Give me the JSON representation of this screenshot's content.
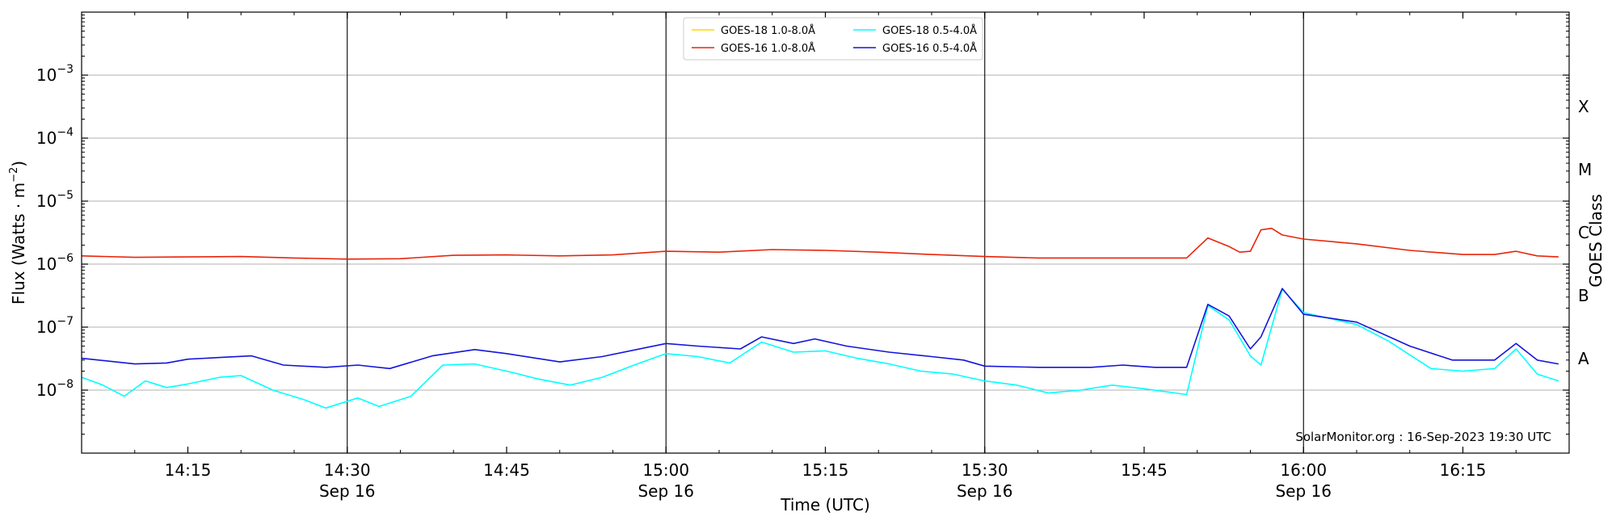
{
  "chart_data": {
    "type": "line",
    "xlabel": "Time (UTC)",
    "ylabel": "Flux (Watts · m",
    "ylabel_sup": "−2",
    "ylabel_close": ")",
    "right_label": "GOES Class",
    "credit": "SolarMonitor.org : 16-Sep-2023 19:30 UTC",
    "log_y": true,
    "grid": "horizontal",
    "legend_position": "top-center",
    "x_range": [
      "14:05",
      "16:25"
    ],
    "y_range": [
      1e-09,
      0.01
    ],
    "y_ticks": [
      {
        "value": 1e-08,
        "base": "10",
        "exp": "−8"
      },
      {
        "value": 1e-07,
        "base": "10",
        "exp": "−7"
      },
      {
        "value": 1e-06,
        "base": "10",
        "exp": "−6"
      },
      {
        "value": 1e-05,
        "base": "10",
        "exp": "−5"
      },
      {
        "value": 0.0001,
        "base": "10",
        "exp": "−4"
      },
      {
        "value": 0.001,
        "base": "10",
        "exp": "−3"
      }
    ],
    "x_ticks": [
      {
        "time": "14:15",
        "label": "14:15",
        "sub": ""
      },
      {
        "time": "14:30",
        "label": "14:30",
        "sub": "Sep 16"
      },
      {
        "time": "14:45",
        "label": "14:45",
        "sub": ""
      },
      {
        "time": "15:00",
        "label": "15:00",
        "sub": "Sep 16"
      },
      {
        "time": "15:15",
        "label": "15:15",
        "sub": ""
      },
      {
        "time": "15:30",
        "label": "15:30",
        "sub": "Sep 16"
      },
      {
        "time": "15:45",
        "label": "15:45",
        "sub": ""
      },
      {
        "time": "16:00",
        "label": "16:00",
        "sub": "Sep 16"
      },
      {
        "time": "16:15",
        "label": "16:15",
        "sub": ""
      }
    ],
    "vertical_lines": [
      "14:30",
      "15:00",
      "15:30",
      "16:00"
    ],
    "goes_classes": [
      {
        "label": "A",
        "value": 1e-08
      },
      {
        "label": "B",
        "value": 1e-07
      },
      {
        "label": "C",
        "value": 1e-06
      },
      {
        "label": "M",
        "value": 1e-05
      },
      {
        "label": "X",
        "value": 0.0001
      }
    ],
    "series": [
      {
        "name": "GOES-18 1.0-8.0Å",
        "color": "#ffd700",
        "points": []
      },
      {
        "name": "GOES-16 1.0-8.0Å",
        "color": "#e8250a",
        "points": [
          [
            "14:05",
            1.35e-06
          ],
          [
            "14:10",
            1.28e-06
          ],
          [
            "14:15",
            1.3e-06
          ],
          [
            "14:20",
            1.32e-06
          ],
          [
            "14:25",
            1.25e-06
          ],
          [
            "14:30",
            1.2e-06
          ],
          [
            "14:35",
            1.22e-06
          ],
          [
            "14:40",
            1.38e-06
          ],
          [
            "14:45",
            1.4e-06
          ],
          [
            "14:50",
            1.35e-06
          ],
          [
            "14:55",
            1.4e-06
          ],
          [
            "15:00",
            1.6e-06
          ],
          [
            "15:05",
            1.55e-06
          ],
          [
            "15:10",
            1.7e-06
          ],
          [
            "15:15",
            1.65e-06
          ],
          [
            "15:20",
            1.55e-06
          ],
          [
            "15:25",
            1.42e-06
          ],
          [
            "15:30",
            1.32e-06
          ],
          [
            "15:35",
            1.25e-06
          ],
          [
            "15:40",
            1.25e-06
          ],
          [
            "15:45",
            1.25e-06
          ],
          [
            "15:49",
            1.25e-06
          ],
          [
            "15:51",
            2.6e-06
          ],
          [
            "15:53",
            1.9e-06
          ],
          [
            "15:54",
            1.55e-06
          ],
          [
            "15:55",
            1.6e-06
          ],
          [
            "15:56",
            3.5e-06
          ],
          [
            "15:57",
            3.7e-06
          ],
          [
            "15:58",
            2.9e-06
          ],
          [
            "16:00",
            2.5e-06
          ],
          [
            "16:05",
            2.1e-06
          ],
          [
            "16:10",
            1.65e-06
          ],
          [
            "16:15",
            1.42e-06
          ],
          [
            "16:18",
            1.42e-06
          ],
          [
            "16:20",
            1.6e-06
          ],
          [
            "16:22",
            1.35e-06
          ],
          [
            "16:24",
            1.3e-06
          ]
        ]
      },
      {
        "name": "GOES-18 0.5-4.0Å",
        "color": "#00ffff",
        "points": [
          [
            "14:05",
            1.6e-08
          ],
          [
            "14:07",
            1.2e-08
          ],
          [
            "14:09",
            8e-09
          ],
          [
            "14:11",
            1.4e-08
          ],
          [
            "14:13",
            1.1e-08
          ],
          [
            "14:15",
            1.25e-08
          ],
          [
            "14:18",
            1.6e-08
          ],
          [
            "14:20",
            1.7e-08
          ],
          [
            "14:23",
            1e-08
          ],
          [
            "14:26",
            7e-09
          ],
          [
            "14:28",
            5.2e-09
          ],
          [
            "14:31",
            7.5e-09
          ],
          [
            "14:33",
            5.5e-09
          ],
          [
            "14:36",
            8e-09
          ],
          [
            "14:39",
            2.5e-08
          ],
          [
            "14:42",
            2.6e-08
          ],
          [
            "14:45",
            2e-08
          ],
          [
            "14:48",
            1.5e-08
          ],
          [
            "14:51",
            1.2e-08
          ],
          [
            "14:54",
            1.6e-08
          ],
          [
            "14:57",
            2.5e-08
          ],
          [
            "15:00",
            3.8e-08
          ],
          [
            "15:03",
            3.4e-08
          ],
          [
            "15:06",
            2.7e-08
          ],
          [
            "15:09",
            5.8e-08
          ],
          [
            "15:12",
            4e-08
          ],
          [
            "15:15",
            4.2e-08
          ],
          [
            "15:18",
            3.2e-08
          ],
          [
            "15:21",
            2.6e-08
          ],
          [
            "15:24",
            2e-08
          ],
          [
            "15:27",
            1.8e-08
          ],
          [
            "15:30",
            1.4e-08
          ],
          [
            "15:33",
            1.2e-08
          ],
          [
            "15:36",
            9e-09
          ],
          [
            "15:39",
            1e-08
          ],
          [
            "15:42",
            1.2e-08
          ],
          [
            "15:45",
            1.05e-08
          ],
          [
            "15:49",
            8.5e-09
          ],
          [
            "15:51",
            2.2e-07
          ],
          [
            "15:53",
            1.3e-07
          ],
          [
            "15:55",
            3.5e-08
          ],
          [
            "15:56",
            2.5e-08
          ],
          [
            "15:58",
            4e-07
          ],
          [
            "16:00",
            1.7e-07
          ],
          [
            "16:05",
            1.1e-07
          ],
          [
            "16:08",
            6e-08
          ],
          [
            "16:12",
            2.2e-08
          ],
          [
            "16:15",
            2e-08
          ],
          [
            "16:18",
            2.2e-08
          ],
          [
            "16:20",
            4.5e-08
          ],
          [
            "16:22",
            1.8e-08
          ],
          [
            "16:24",
            1.4e-08
          ]
        ]
      },
      {
        "name": "GOES-16 0.5-4.0Å",
        "color": "#1414dc",
        "points": [
          [
            "14:05",
            3.2e-08
          ],
          [
            "14:10",
            2.6e-08
          ],
          [
            "14:13",
            2.7e-08
          ],
          [
            "14:15",
            3.1e-08
          ],
          [
            "14:18",
            3.3e-08
          ],
          [
            "14:21",
            3.5e-08
          ],
          [
            "14:24",
            2.5e-08
          ],
          [
            "14:28",
            2.3e-08
          ],
          [
            "14:31",
            2.5e-08
          ],
          [
            "14:34",
            2.2e-08
          ],
          [
            "14:38",
            3.5e-08
          ],
          [
            "14:42",
            4.4e-08
          ],
          [
            "14:45",
            3.8e-08
          ],
          [
            "14:50",
            2.8e-08
          ],
          [
            "14:54",
            3.4e-08
          ],
          [
            "15:00",
            5.5e-08
          ],
          [
            "15:03",
            5e-08
          ],
          [
            "15:07",
            4.5e-08
          ],
          [
            "15:09",
            7e-08
          ],
          [
            "15:12",
            5.5e-08
          ],
          [
            "15:14",
            6.5e-08
          ],
          [
            "15:17",
            5e-08
          ],
          [
            "15:21",
            4e-08
          ],
          [
            "15:25",
            3.4e-08
          ],
          [
            "15:28",
            3e-08
          ],
          [
            "15:30",
            2.4e-08
          ],
          [
            "15:35",
            2.3e-08
          ],
          [
            "15:40",
            2.3e-08
          ],
          [
            "15:43",
            2.5e-08
          ],
          [
            "15:46",
            2.3e-08
          ],
          [
            "15:49",
            2.3e-08
          ],
          [
            "15:51",
            2.3e-07
          ],
          [
            "15:53",
            1.5e-07
          ],
          [
            "15:55",
            4.5e-08
          ],
          [
            "15:56",
            7e-08
          ],
          [
            "15:58",
            4.1e-07
          ],
          [
            "16:00",
            1.6e-07
          ],
          [
            "16:05",
            1.2e-07
          ],
          [
            "16:10",
            5e-08
          ],
          [
            "16:14",
            3e-08
          ],
          [
            "16:18",
            3e-08
          ],
          [
            "16:20",
            5.5e-08
          ],
          [
            "16:22",
            3e-08
          ],
          [
            "16:24",
            2.6e-08
          ]
        ]
      }
    ]
  }
}
